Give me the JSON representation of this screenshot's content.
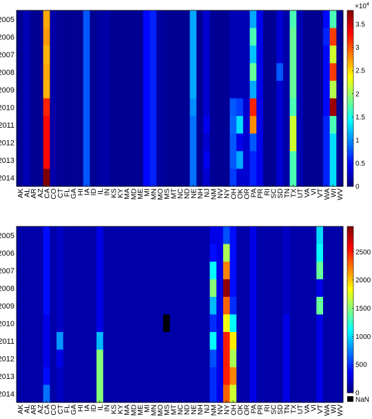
{
  "chart_data": [
    {
      "type": "heatmap",
      "title": "",
      "xlabel": "",
      "ylabel": "",
      "years": [
        "2005",
        "2006",
        "2007",
        "2008",
        "2009",
        "2010",
        "2011",
        "2012",
        "2013",
        "2014"
      ],
      "states": [
        "AK",
        "AL",
        "AR",
        "AZ",
        "CA",
        "CO",
        "CT",
        "FL",
        "GA",
        "HI",
        "IA",
        "ID",
        "IL",
        "IN",
        "KS",
        "KY",
        "MA",
        "MD",
        "ME",
        "MI",
        "MN",
        "MO",
        "MS",
        "MT",
        "NC",
        "ND",
        "NE",
        "NH",
        "NJ",
        "NM",
        "NV",
        "NY",
        "OH",
        "OK",
        "OR",
        "PA",
        "PR",
        "RI",
        "SC",
        "SD",
        "TN",
        "TX",
        "UT",
        "VA",
        "VI",
        "VT",
        "WA",
        "WI",
        "WV"
      ],
      "colorbar": {
        "min": 0,
        "max": 38000,
        "ticks": [
          0,
          5000,
          10000,
          15000,
          20000,
          25000,
          30000,
          35000
        ],
        "tick_labels": [
          "0",
          "0.5",
          "1",
          "1.5",
          "2",
          "2.5",
          "3",
          "3.5"
        ],
        "multiplier_base": "×10",
        "multiplier_exp": "4"
      },
      "cells": [
        {
          "state": "CA",
          "values": [
            27000,
            27500,
            26500,
            27000,
            26500,
            32000,
            33000,
            33000,
            33000,
            38000
          ]
        },
        {
          "state": "IA",
          "values": [
            8000,
            8000,
            8000,
            8000,
            8000,
            8000,
            8000,
            8000,
            8000,
            8000
          ]
        },
        {
          "state": "MI",
          "values": [
            5000,
            5000,
            5000,
            5000,
            5000,
            5000,
            5000,
            5000,
            5000,
            5000
          ]
        },
        {
          "state": "MN",
          "values": [
            6000,
            6000,
            6000,
            6000,
            6000,
            6000,
            6000,
            6000,
            6000,
            6000
          ]
        },
        {
          "state": "NE",
          "values": [
            11000,
            11000,
            11000,
            11000,
            11000,
            10000,
            9000,
            9000,
            9000,
            9000
          ]
        },
        {
          "state": "NJ",
          "values": [
            3000,
            3000,
            3000,
            3000,
            3000,
            3000,
            4000,
            3000,
            4000,
            3000
          ]
        },
        {
          "state": "OH",
          "values": [
            2000,
            2000,
            2000,
            2000,
            2000,
            8000,
            8500,
            8000,
            8000,
            7000
          ]
        },
        {
          "state": "OK",
          "values": [
            2000,
            2000,
            2000,
            2000,
            2000,
            7000,
            13000,
            4000,
            11000,
            3000
          ]
        },
        {
          "state": "OR",
          "values": [
            2000,
            2000,
            2000,
            2000,
            2000,
            3000,
            3000,
            3000,
            3000,
            3000
          ]
        },
        {
          "state": "PA",
          "values": [
            11000,
            17000,
            12000,
            18000,
            11000,
            32000,
            28000,
            8000,
            6000,
            6000
          ]
        },
        {
          "state": "PR",
          "values": [
            4000,
            4000,
            4000,
            4000,
            4000,
            4000,
            4000,
            4000,
            4000,
            4000
          ]
        },
        {
          "state": "SD",
          "values": [
            3000,
            3000,
            3000,
            8000,
            3000,
            3000,
            3000,
            3000,
            3000,
            3000
          ]
        },
        {
          "state": "TX",
          "values": [
            17000,
            18000,
            18000,
            18000,
            18000,
            17000,
            22000,
            22000,
            17000,
            17000
          ]
        },
        {
          "state": "UT",
          "values": [
            2000,
            2000,
            2000,
            2000,
            2000,
            2000,
            2000,
            2000,
            2000,
            2000
          ]
        },
        {
          "state": "WA",
          "values": [
            5000,
            6000,
            5000,
            5000,
            5000,
            5000,
            6000,
            6000,
            6000,
            6000
          ]
        },
        {
          "state": "WI",
          "values": [
            17000,
            31000,
            22000,
            31000,
            21000,
            37000,
            17000,
            13000,
            13000,
            13000
          ]
        },
        {
          "state": "AL",
          "values": [
            2000,
            2000,
            2000,
            2000,
            2000,
            2000,
            2000,
            2000,
            2000,
            2000
          ]
        },
        {
          "state": "CO",
          "values": [
            1500,
            1500,
            1500,
            1500,
            1500,
            1500,
            1500,
            1500,
            1500,
            1500
          ]
        },
        {
          "state": "IL",
          "values": [
            1200,
            1200,
            1200,
            1200,
            1200,
            1200,
            1200,
            1200,
            1200,
            1200
          ]
        },
        {
          "state": "IN",
          "values": [
            1500,
            1500,
            1500,
            1500,
            1500,
            1500,
            1500,
            1500,
            1500,
            1500
          ]
        },
        {
          "state": "MO",
          "values": [
            1200,
            1200,
            1200,
            1200,
            1200,
            1200,
            1200,
            1200,
            1200,
            1200
          ]
        },
        {
          "state": "TN",
          "values": [
            1500,
            1500,
            1500,
            1500,
            1500,
            1500,
            1500,
            1500,
            1500,
            1500
          ]
        }
      ],
      "default_value": 800
    },
    {
      "type": "heatmap",
      "title": "",
      "xlabel": "",
      "ylabel": "",
      "years": [
        "2005",
        "2006",
        "2007",
        "2008",
        "2009",
        "2010",
        "2011",
        "2012",
        "2013",
        "2014"
      ],
      "states": [
        "AK",
        "AL",
        "AR",
        "AZ",
        "CA",
        "CO",
        "CT",
        "FL",
        "GA",
        "HI",
        "IA",
        "ID",
        "IL",
        "IN",
        "KS",
        "KY",
        "MA",
        "MD",
        "ME",
        "MI",
        "MN",
        "MO",
        "MS",
        "MT",
        "NC",
        "ND",
        "NE",
        "NH",
        "NJ",
        "NM",
        "NV",
        "NY",
        "OH",
        "OK",
        "OR",
        "PA",
        "PR",
        "RI",
        "SC",
        "SD",
        "TN",
        "TX",
        "UT",
        "VA",
        "VI",
        "VT",
        "WA",
        "WI",
        "WV"
      ],
      "colorbar": {
        "min": 0,
        "max": 2950,
        "ticks": [
          0,
          500,
          1000,
          1500,
          2000,
          2500
        ],
        "tick_labels": [
          "0",
          "500",
          "1000",
          "1500",
          "2000",
          "2500"
        ],
        "nan_label": "NaN"
      },
      "cells": [
        {
          "state": "NM",
          "values": [
            300,
            400,
            1100,
            1500,
            900,
            500,
            1100,
            600,
            500,
            500
          ]
        },
        {
          "state": "NY",
          "values": [
            600,
            1600,
            2200,
            2900,
            2300,
            1800,
            2500,
            2500,
            2500,
            2300
          ]
        },
        {
          "state": "OH",
          "values": [
            400,
            400,
            400,
            400,
            500,
            1100,
            1900,
            1600,
            2200,
            1700
          ]
        },
        {
          "state": "IL",
          "values": [
            300,
            300,
            300,
            300,
            300,
            300,
            900,
            1500,
            1500,
            1500
          ]
        },
        {
          "state": "CT",
          "values": [
            200,
            200,
            200,
            200,
            200,
            200,
            800,
            300,
            200,
            200
          ]
        },
        {
          "state": "CA",
          "values": [
            400,
            400,
            400,
            400,
            400,
            300,
            300,
            300,
            400,
            700
          ]
        },
        {
          "state": "VT",
          "values": [
            1000,
            1100,
            1400,
            300,
            1400,
            300,
            300,
            300,
            300,
            300
          ]
        },
        {
          "state": "NV",
          "values": [
            300,
            300,
            300,
            300,
            300,
            300,
            300,
            300,
            300,
            300
          ]
        },
        {
          "state": "PA",
          "values": [
            300,
            300,
            300,
            300,
            300,
            300,
            300,
            300,
            300,
            300
          ]
        },
        {
          "state": "TN",
          "values": [
            200,
            200,
            200,
            200,
            200,
            300,
            300,
            300,
            300,
            300
          ]
        }
      ],
      "nan_cells": [
        {
          "state": "MS",
          "year": "2010"
        }
      ],
      "default_value": 120
    }
  ]
}
